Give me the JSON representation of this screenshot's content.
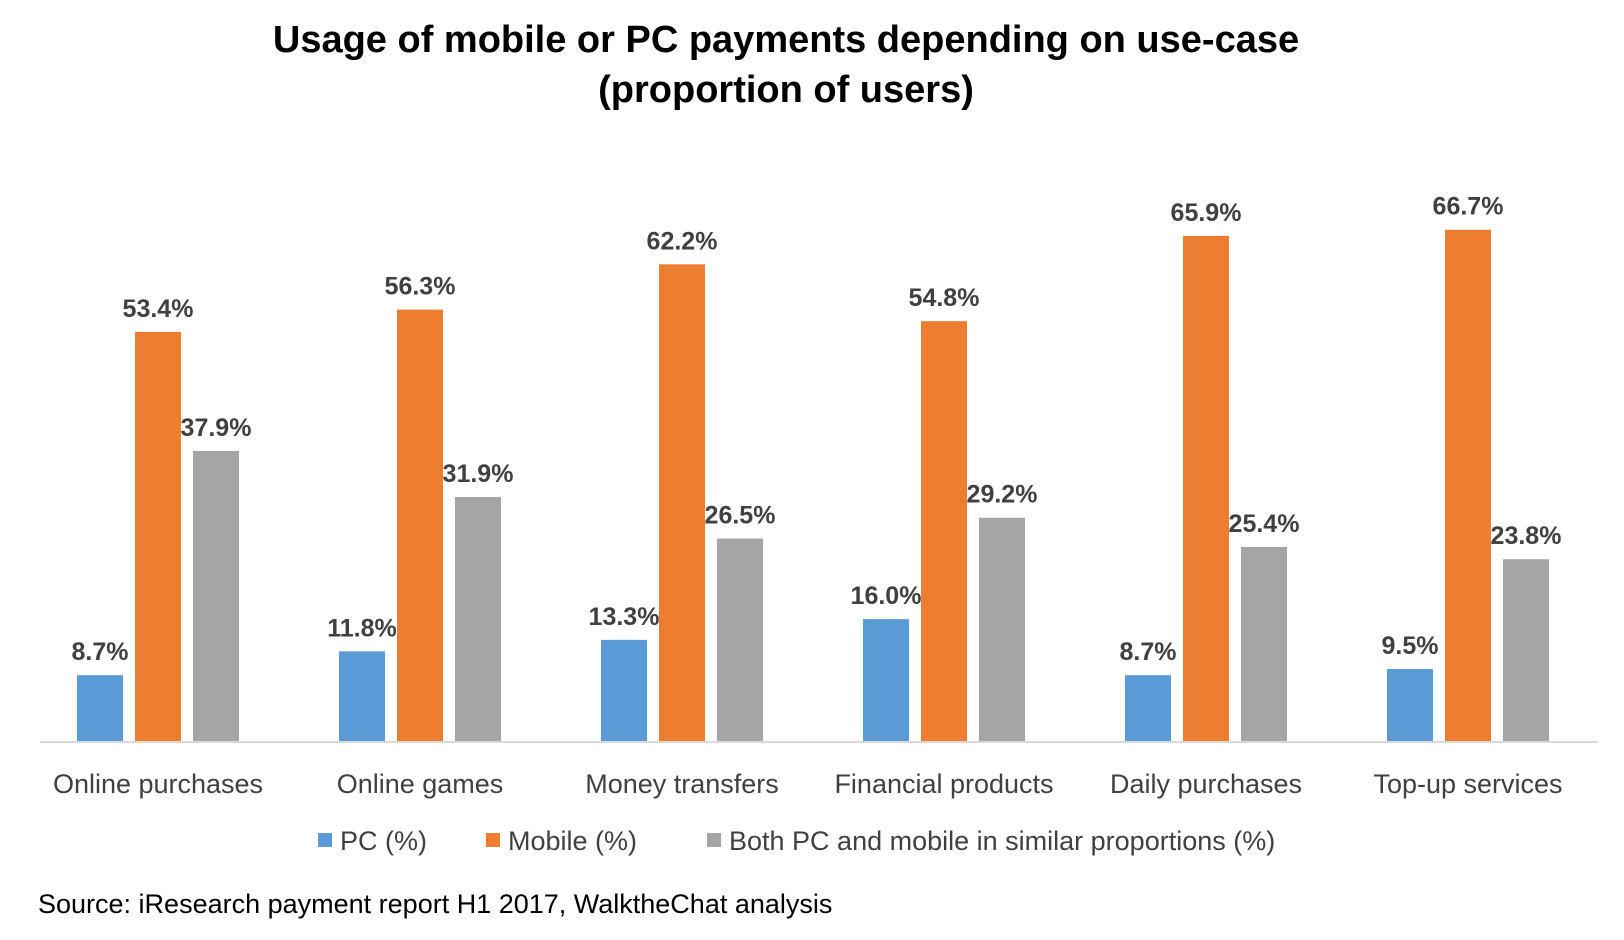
{
  "chart_data": {
    "type": "bar",
    "title": "Usage of mobile or PC payments depending on use-case",
    "subtitle": "(proportion of users)",
    "categories": [
      "Online purchases",
      "Online games",
      "Money transfers",
      "Financial products",
      "Daily purchases",
      "Top-up services"
    ],
    "series": [
      {
        "name": "PC (%)",
        "color": "#5B9BD5",
        "values": [
          8.7,
          11.8,
          13.3,
          16.0,
          8.7,
          9.5
        ],
        "labels": [
          "8.7%",
          "11.8%",
          "13.3%",
          "16.0%",
          "8.7%",
          "9.5%"
        ]
      },
      {
        "name": "Mobile (%)",
        "color": "#ED7D31",
        "values": [
          53.4,
          56.3,
          62.2,
          54.8,
          65.9,
          66.7
        ],
        "labels": [
          "53.4%",
          "56.3%",
          "62.2%",
          "54.8%",
          "65.9%",
          "66.7%"
        ]
      },
      {
        "name": "Both PC and mobile in similar proportions (%)",
        "color": "#A5A5A5",
        "values": [
          37.9,
          31.9,
          26.5,
          29.2,
          25.4,
          23.8
        ],
        "labels": [
          "37.9%",
          "31.9%",
          "26.5%",
          "29.2%",
          "25.4%",
          "23.8%"
        ]
      }
    ],
    "ylim": [
      0,
      70
    ],
    "grid": false,
    "legend_position": "bottom",
    "xlabel": "",
    "ylabel": "",
    "source": "Source: iResearch payment report H1 2017, WalktheChat analysis"
  }
}
